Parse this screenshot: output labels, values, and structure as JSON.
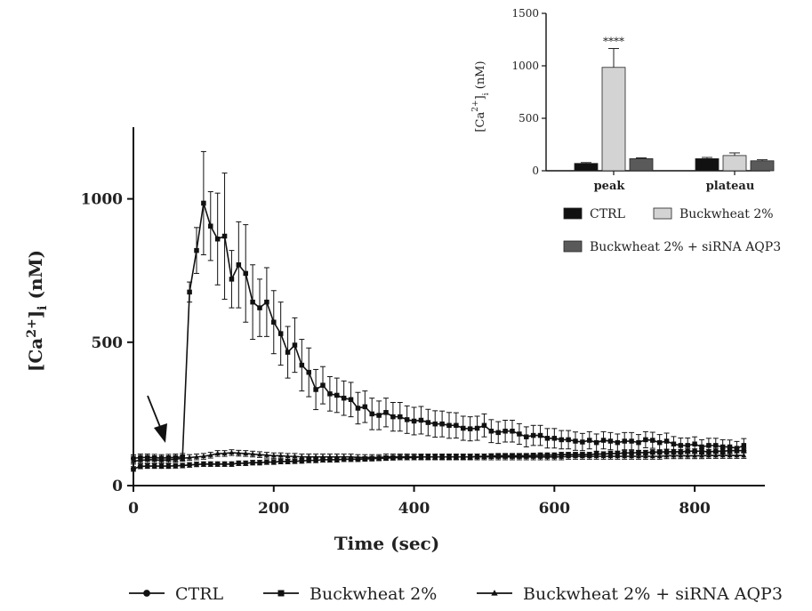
{
  "chart_data": [
    {
      "type": "line",
      "xlabel": "Time (sec)",
      "ylabel": {
        "base": "[Ca",
        "sup": "2+",
        "close": "]",
        "sub": "i",
        "unit": " (nM)"
      },
      "xlim": [
        0,
        900
      ],
      "ylim": [
        0,
        1250
      ],
      "xticks": [
        "0",
        "200",
        "400",
        "600",
        "800"
      ],
      "yticks": [
        "0",
        "500",
        "1000"
      ],
      "annotation": "stimulus arrow at ~40 sec",
      "series": [
        {
          "name": "CTRL",
          "marker": "circle",
          "x": [
            0,
            10,
            20,
            30,
            40,
            50,
            60,
            70,
            80,
            90,
            100,
            110,
            120,
            130,
            140,
            150,
            160,
            170,
            180,
            190,
            200,
            210,
            220,
            230,
            240,
            250,
            260,
            270,
            280,
            290,
            300,
            310,
            320,
            330,
            340,
            350,
            360,
            370,
            380,
            390,
            400,
            410,
            420,
            430,
            440,
            450,
            460,
            470,
            480,
            490,
            500,
            510,
            520,
            530,
            540,
            550,
            560,
            570,
            580,
            590,
            600,
            610,
            620,
            630,
            640,
            650,
            660,
            670,
            680,
            690,
            700,
            710,
            720,
            730,
            740,
            750,
            760,
            770,
            780,
            790,
            800,
            810,
            820,
            830,
            840,
            850,
            860,
            870
          ],
          "y": [
            58,
            67,
            68,
            68,
            68,
            68,
            69,
            70,
            72,
            74,
            75,
            75,
            75,
            75,
            75,
            78,
            78,
            80,
            80,
            82,
            82,
            84,
            84,
            85,
            86,
            88,
            88,
            90,
            90,
            90,
            92,
            92,
            92,
            93,
            94,
            95,
            96,
            97,
            98,
            98,
            98,
            100,
            100,
            100,
            100,
            100,
            100,
            100,
            100,
            102,
            102,
            103,
            104,
            104,
            104,
            104,
            104,
            105,
            106,
            106,
            106,
            108,
            108,
            108,
            108,
            108,
            110,
            110,
            112,
            112,
            114,
            114,
            115,
            115,
            117,
            117,
            118,
            118,
            118,
            120,
            120,
            120,
            118,
            120,
            120,
            122,
            122,
            122
          ],
          "err": 8
        },
        {
          "name": "Buckwheat 2%",
          "marker": "square",
          "x": [
            0,
            10,
            20,
            30,
            40,
            50,
            60,
            70,
            80,
            90,
            100,
            110,
            120,
            130,
            140,
            150,
            160,
            170,
            180,
            190,
            200,
            210,
            220,
            230,
            240,
            250,
            260,
            270,
            280,
            290,
            300,
            310,
            320,
            330,
            340,
            350,
            360,
            370,
            380,
            390,
            400,
            410,
            420,
            430,
            440,
            450,
            460,
            470,
            480,
            490,
            500,
            510,
            520,
            530,
            540,
            550,
            560,
            570,
            580,
            590,
            600,
            610,
            620,
            630,
            640,
            650,
            660,
            670,
            680,
            690,
            700,
            710,
            720,
            730,
            740,
            750,
            760,
            770,
            780,
            790,
            800,
            810,
            820,
            830,
            840,
            850,
            860,
            870
          ],
          "y": [
            95,
            98,
            98,
            97,
            96,
            97,
            98,
            100,
            675,
            820,
            985,
            905,
            860,
            870,
            720,
            770,
            740,
            640,
            620,
            640,
            570,
            530,
            465,
            490,
            420,
            395,
            335,
            350,
            320,
            315,
            305,
            300,
            270,
            275,
            250,
            245,
            255,
            240,
            240,
            230,
            225,
            228,
            220,
            215,
            215,
            210,
            210,
            200,
            198,
            200,
            210,
            190,
            185,
            190,
            190,
            180,
            170,
            175,
            175,
            165,
            165,
            160,
            160,
            155,
            152,
            158,
            150,
            158,
            155,
            150,
            155,
            155,
            150,
            160,
            158,
            150,
            155,
            145,
            140,
            140,
            145,
            135,
            140,
            140,
            135,
            135,
            130,
            140
          ],
          "err_lo": [
            12,
            12,
            12,
            12,
            12,
            12,
            12,
            12,
            35,
            80,
            180,
            120,
            160,
            220,
            100,
            150,
            170,
            130,
            100,
            120,
            110,
            110,
            90,
            95,
            90,
            85,
            70,
            65,
            60,
            60,
            60,
            60,
            55,
            55,
            55,
            50,
            50,
            50,
            50,
            48,
            48,
            48,
            46,
            46,
            45,
            45,
            44,
            42,
            42,
            42,
            40,
            40,
            38,
            38,
            38,
            36,
            35,
            35,
            35,
            34,
            34,
            32,
            32,
            32,
            30,
            30,
            30,
            30,
            30,
            30,
            30,
            30,
            28,
            28,
            28,
            28,
            28,
            26,
            26,
            26,
            25,
            25,
            25,
            25,
            25,
            24,
            24,
            24
          ]
        },
        {
          "name": "Buckwheat 2% + siRNA AQP3",
          "marker": "triangle",
          "x": [
            0,
            10,
            20,
            30,
            40,
            50,
            60,
            70,
            80,
            90,
            100,
            110,
            120,
            130,
            140,
            150,
            160,
            170,
            180,
            190,
            200,
            210,
            220,
            230,
            240,
            250,
            260,
            270,
            280,
            290,
            300,
            310,
            320,
            330,
            340,
            350,
            360,
            370,
            380,
            390,
            400,
            410,
            420,
            430,
            440,
            450,
            460,
            470,
            480,
            490,
            500,
            510,
            520,
            530,
            540,
            550,
            560,
            570,
            580,
            590,
            600,
            610,
            620,
            630,
            640,
            650,
            660,
            670,
            680,
            690,
            700,
            710,
            720,
            730,
            740,
            750,
            760,
            770,
            780,
            790,
            800,
            810,
            820,
            830,
            840,
            850,
            860,
            870
          ],
          "y": [
            85,
            88,
            90,
            90,
            88,
            90,
            92,
            95,
            98,
            100,
            102,
            106,
            112,
            112,
            115,
            113,
            112,
            110,
            108,
            106,
            104,
            104,
            102,
            102,
            100,
            100,
            100,
            100,
            100,
            100,
            100,
            100,
            98,
            98,
            98,
            98,
            100,
            100,
            100,
            100,
            100,
            100,
            100,
            100,
            100,
            100,
            100,
            100,
            100,
            100,
            100,
            100,
            100,
            100,
            100,
            100,
            100,
            100,
            100,
            100,
            100,
            100,
            102,
            102,
            102,
            102,
            102,
            102,
            102,
            102,
            102,
            102,
            102,
            102,
            102,
            102,
            104,
            104,
            104,
            104,
            104,
            104,
            105,
            105,
            105,
            105,
            105,
            105
          ],
          "err": 10
        }
      ],
      "legend": [
        "CTRL",
        "Buckwheat 2%",
        "Buckwheat 2% + siRNA AQP3"
      ]
    },
    {
      "type": "bar",
      "categories": [
        "peak",
        "plateau"
      ],
      "ylabel": {
        "base": "[Ca",
        "sup": "2+",
        "close": "]",
        "sub": "i",
        "unit": " (nM)"
      },
      "ylim": [
        0,
        1500
      ],
      "yticks": [
        "0",
        "500",
        "1000",
        "1500"
      ],
      "annotation": "****",
      "series": [
        {
          "name": "CTRL",
          "color": "#111111",
          "values": [
            70,
            115
          ],
          "err": [
            8,
            12
          ]
        },
        {
          "name": "Buckwheat 2%",
          "color": "#d3d3d3",
          "values": [
            985,
            145
          ],
          "err": [
            180,
            25
          ]
        },
        {
          "name": "Buckwheat 2% + siRNA AQP3",
          "color": "#5a5a5a",
          "values": [
            115,
            95
          ],
          "err": [
            8,
            10
          ]
        }
      ]
    }
  ],
  "colors": {
    "axis": "#111111",
    "line": "#111111"
  }
}
